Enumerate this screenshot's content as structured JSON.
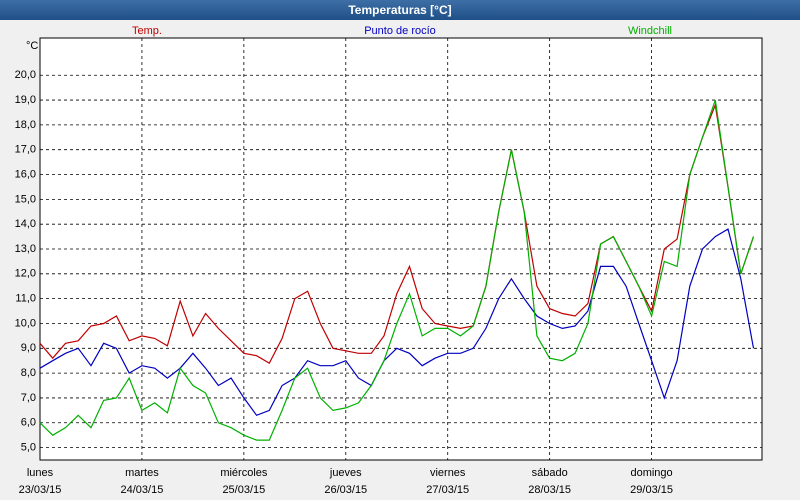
{
  "chart_data": {
    "type": "line",
    "title": "Temperaturas [°C]",
    "unit": "°C",
    "x": [
      0,
      3,
      6,
      9,
      12,
      15,
      18,
      21,
      24,
      27,
      30,
      33,
      36,
      39,
      42,
      45,
      48,
      51,
      54,
      57,
      60,
      63,
      66,
      69,
      72,
      75,
      78,
      81,
      84,
      87,
      90,
      93,
      96,
      99,
      102,
      105,
      108,
      111,
      114,
      117,
      120,
      123,
      126,
      129,
      132,
      135,
      138,
      141,
      144,
      147,
      150,
      153,
      156,
      159,
      162,
      165,
      168
    ],
    "xlim": [
      0,
      170
    ],
    "xticks": [
      {
        "value": 0,
        "label": [
          "lunes",
          "23/03/15"
        ]
      },
      {
        "value": 24,
        "label": [
          "martes",
          "24/03/15"
        ]
      },
      {
        "value": 48,
        "label": [
          "miércoles",
          "25/03/15"
        ]
      },
      {
        "value": 72,
        "label": [
          "jueves",
          "26/03/15"
        ]
      },
      {
        "value": 96,
        "label": [
          "viernes",
          "27/03/15"
        ]
      },
      {
        "value": 120,
        "label": [
          "sábado",
          "28/03/15"
        ]
      },
      {
        "value": 144,
        "label": [
          "domingo",
          "29/03/15"
        ]
      }
    ],
    "ylim": [
      4.5,
      21.5
    ],
    "yticks": [
      {
        "value": 5,
        "label": "5,0"
      },
      {
        "value": 6,
        "label": "6,0"
      },
      {
        "value": 7,
        "label": "7,0"
      },
      {
        "value": 8,
        "label": "8,0"
      },
      {
        "value": 9,
        "label": "9,0"
      },
      {
        "value": 10,
        "label": "10,0"
      },
      {
        "value": 11,
        "label": "11,0"
      },
      {
        "value": 12,
        "label": "12,0"
      },
      {
        "value": 13,
        "label": "13,0"
      },
      {
        "value": 14,
        "label": "14,0"
      },
      {
        "value": 15,
        "label": "15,0"
      },
      {
        "value": 16,
        "label": "16,0"
      },
      {
        "value": 17,
        "label": "17,0"
      },
      {
        "value": 18,
        "label": "18,0"
      },
      {
        "value": 19,
        "label": "19,0"
      },
      {
        "value": 20,
        "label": "20,0"
      }
    ],
    "grid": true,
    "series": [
      {
        "name": "Temp.",
        "color": "#c00000",
        "values": [
          9.2,
          8.6,
          9.2,
          9.3,
          9.9,
          10.0,
          10.3,
          9.3,
          9.5,
          9.4,
          9.1,
          10.9,
          9.5,
          10.4,
          9.8,
          9.3,
          8.8,
          8.7,
          8.4,
          9.4,
          11.0,
          11.3,
          10.0,
          9.0,
          8.9,
          8.8,
          8.8,
          9.5,
          11.2,
          12.3,
          10.6,
          10.0,
          9.9,
          9.8,
          9.9,
          11.5,
          14.5,
          17.0,
          14.5,
          11.5,
          10.6,
          10.4,
          10.3,
          10.8,
          13.2,
          13.5,
          12.5,
          11.5,
          10.5,
          13.0,
          13.4,
          16.0,
          17.5,
          18.8,
          15.5,
          12.0,
          13.5
        ]
      },
      {
        "name": "Punto de rocío",
        "color": "#0000c0",
        "values": [
          8.2,
          8.5,
          8.8,
          9.0,
          8.3,
          9.2,
          9.0,
          8.0,
          8.3,
          8.2,
          7.8,
          8.2,
          8.8,
          8.2,
          7.5,
          7.8,
          7.0,
          6.3,
          6.5,
          7.5,
          7.8,
          8.5,
          8.3,
          8.3,
          8.5,
          7.8,
          7.5,
          8.5,
          9.0,
          8.8,
          8.3,
          8.6,
          8.8,
          8.8,
          9.0,
          9.8,
          11.0,
          11.8,
          11.0,
          10.3,
          10.0,
          9.8,
          9.9,
          10.5,
          12.3,
          12.3,
          11.5,
          10.0,
          8.5,
          7.0,
          8.5,
          11.5,
          13.0,
          13.5,
          13.8,
          11.8,
          9.0
        ]
      },
      {
        "name": "Windchill",
        "color": "#00b000",
        "values": [
          6.0,
          5.5,
          5.8,
          6.3,
          5.8,
          6.9,
          7.0,
          7.8,
          6.5,
          6.8,
          6.4,
          8.2,
          7.5,
          7.2,
          6.0,
          5.8,
          5.5,
          5.3,
          5.3,
          6.5,
          7.8,
          8.2,
          7.0,
          6.5,
          6.6,
          6.8,
          7.5,
          8.5,
          10.0,
          11.2,
          9.5,
          9.8,
          9.8,
          9.5,
          9.9,
          11.5,
          14.5,
          17.0,
          14.5,
          9.5,
          8.6,
          8.5,
          8.8,
          10.0,
          13.2,
          13.5,
          12.5,
          11.5,
          10.3,
          12.5,
          12.3,
          16.0,
          17.5,
          19.0,
          15.5,
          12.0,
          13.5
        ]
      }
    ]
  }
}
